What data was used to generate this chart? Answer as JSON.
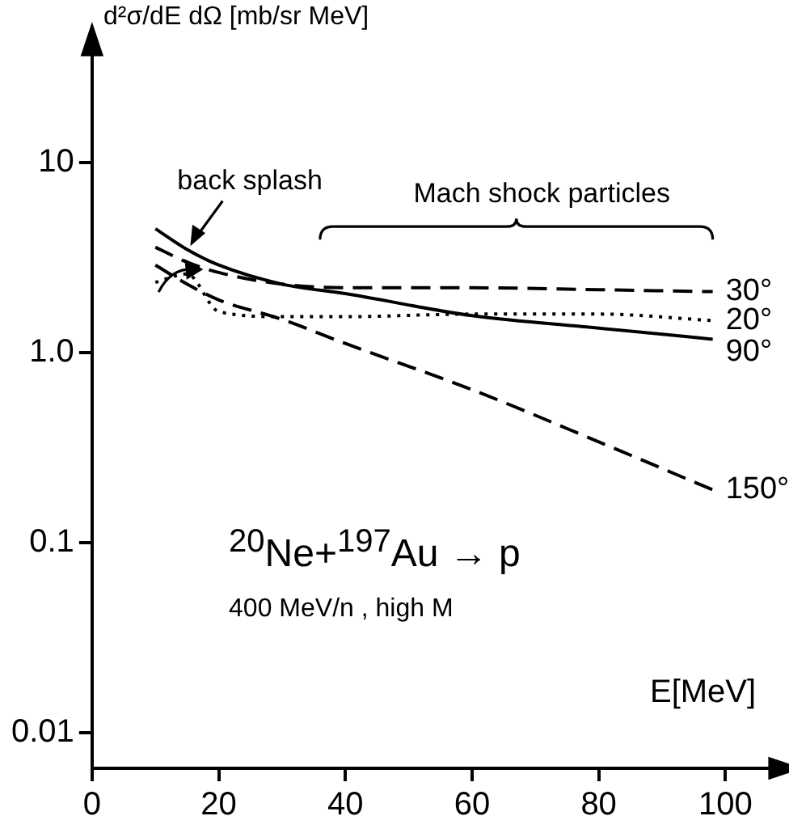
{
  "chart_data": {
    "type": "line",
    "ylabel": "d²σ/dE dΩ [mb/sr MeV]",
    "xlabel": "E[MeV]",
    "log": "y",
    "xlim": [
      0,
      108
    ],
    "ylim": [
      0.0065,
      40
    ],
    "xticks": [
      0,
      20,
      40,
      60,
      80,
      100
    ],
    "yticks": [
      0.01,
      0.1,
      {
        "value": 1,
        "label": "1.0"
      },
      10
    ],
    "grid": false,
    "legend": false,
    "marker": "none",
    "annotations": [
      {
        "text": "back splash",
        "x": 15,
        "y": 3.5
      },
      "Mach shock particles",
      "$^{20}$Ne+$^{197}$Au → p",
      "400 MeV/n ,  high M"
    ],
    "x": [
      10,
      15,
      20,
      30,
      40,
      60,
      80,
      98
    ],
    "series": [
      {
        "name": "30°",
        "color": "#000000",
        "line_style": "dashed",
        "values": [
          3.6,
          3.0,
          2.65,
          2.3,
          2.2,
          2.2,
          2.15,
          2.1
        ]
      },
      {
        "name": "20°",
        "color": "#000000",
        "line_style": "dotted",
        "values": [
          2.35,
          2.6,
          1.65,
          1.55,
          1.55,
          1.6,
          1.6,
          1.48
        ]
      },
      {
        "name": "90°",
        "color": "#000000",
        "line_style": "solid",
        "values": [
          4.5,
          3.5,
          2.9,
          2.3,
          2.05,
          1.57,
          1.35,
          1.18
        ]
      },
      {
        "name": "150°",
        "color": "#000000",
        "line_style": "dashed",
        "values": [
          2.9,
          2.3,
          1.9,
          1.5,
          1.12,
          0.64,
          0.34,
          0.19
        ]
      }
    ]
  }
}
